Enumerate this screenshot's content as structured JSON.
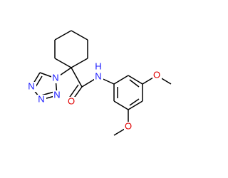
{
  "atoms": [
    {
      "label": "N"
    },
    {
      "label": "N"
    },
    {
      "label": "N"
    },
    {
      "label": "N"
    },
    {
      "label": "O"
    },
    {
      "label": "N"
    },
    {
      "label": "H"
    },
    {
      "label": "O"
    },
    {
      "label": "O"
    }
  ]
}
